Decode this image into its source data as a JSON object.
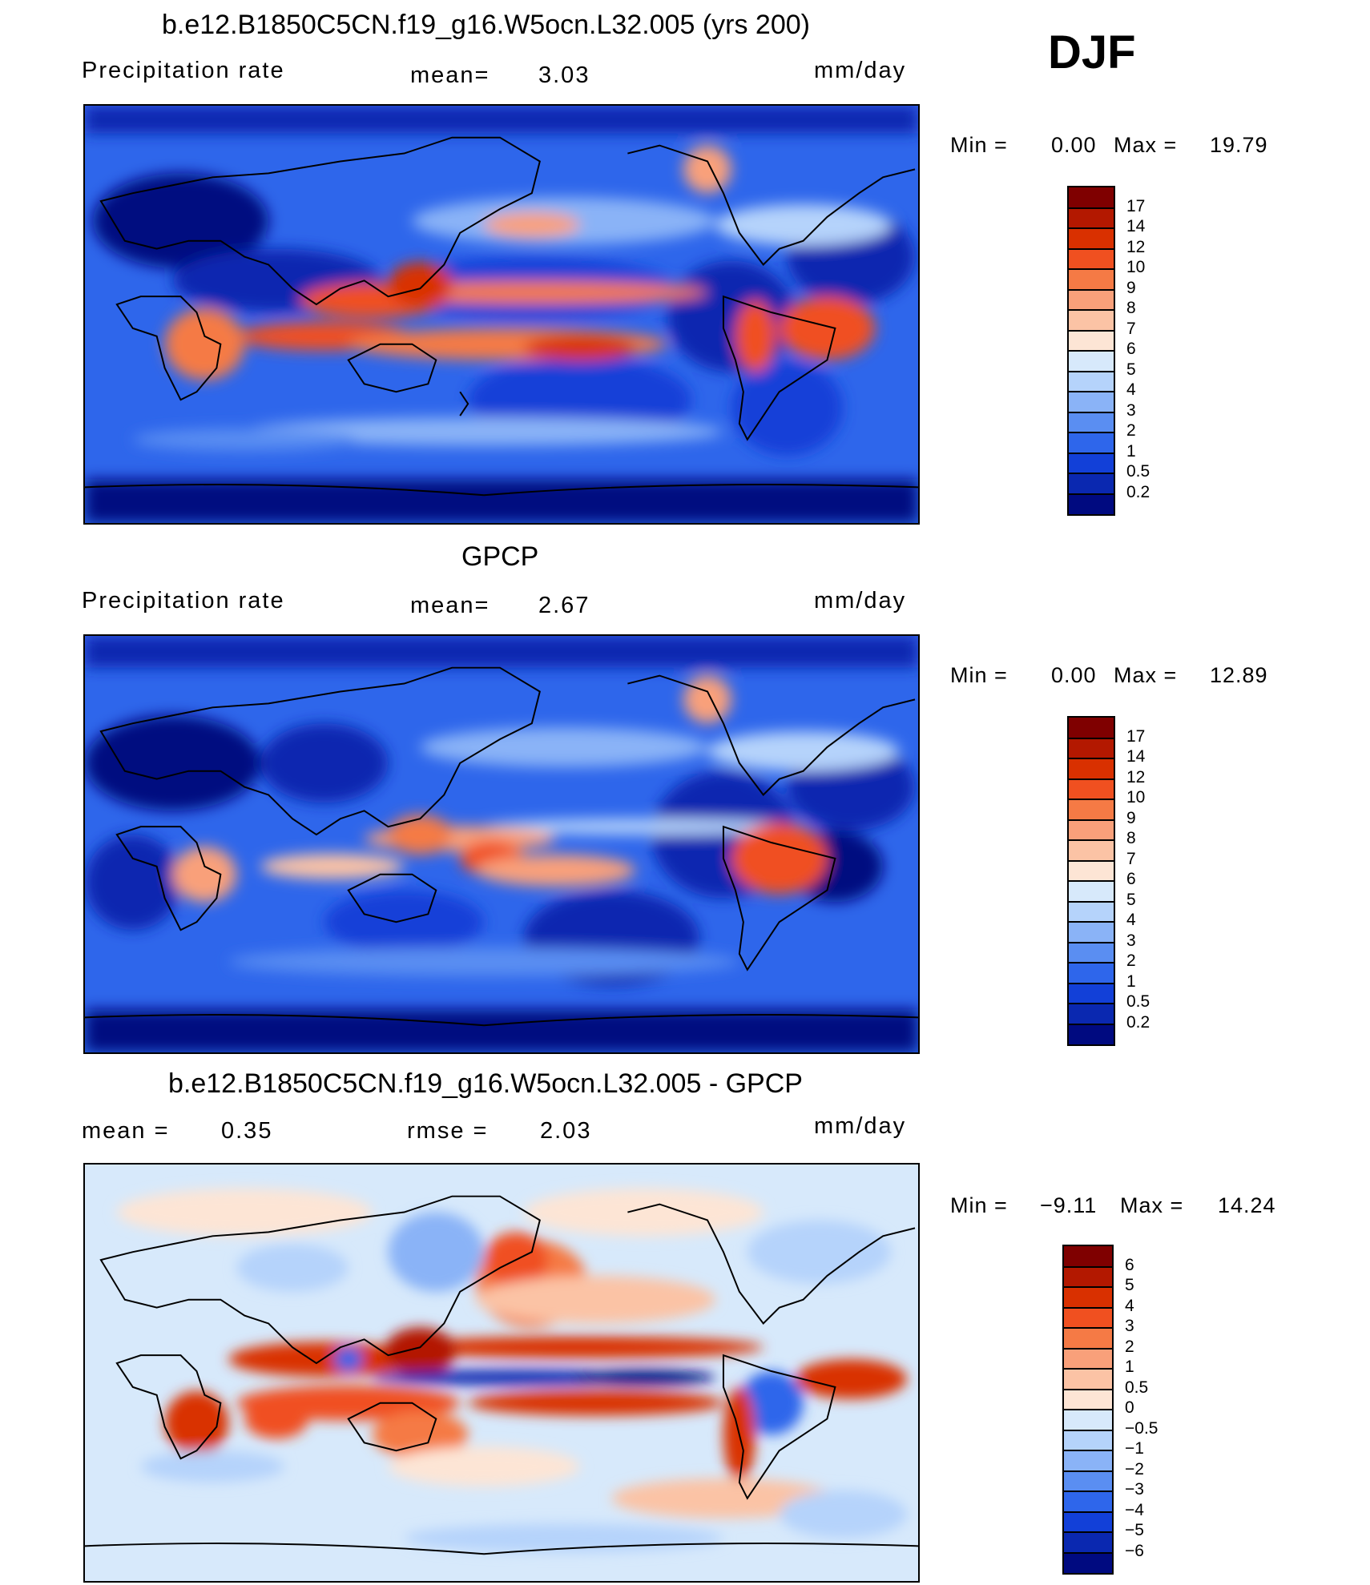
{
  "season": "DJF",
  "panels": [
    {
      "id": "model",
      "title": "b.e12.B1850C5CN.f19_g16.W5ocn.L32.005 (yrs 200)",
      "left_label": "Precipitation  rate",
      "mean_label": "mean=",
      "mean_value": "3.03",
      "units": "mm/day",
      "min_label": "Min  =",
      "min_value": "0.00",
      "max_label": "Max  =",
      "max_value": "19.79"
    },
    {
      "id": "obs",
      "title": "GPCP",
      "left_label": "Precipitation  rate",
      "mean_label": "mean=",
      "mean_value": "2.67",
      "units": "mm/day",
      "min_label": "Min  =",
      "min_value": "0.00",
      "max_label": "Max  =",
      "max_value": "12.89"
    },
    {
      "id": "diff",
      "title": "b.e12.B1850C5CN.f19_g16.W5ocn.L32.005 - GPCP",
      "mean_label": "mean  =",
      "mean_value": "0.35",
      "rmse_label": "rmse  =",
      "rmse_value": "2.03",
      "units": "mm/day",
      "min_label": "Min  =",
      "min_value": "−9.11",
      "max_label": "Max  =",
      "max_value": "14.24"
    }
  ],
  "colorbar_abs": {
    "labels": [
      "17",
      "14",
      "12",
      "10",
      "9",
      "8",
      "7",
      "6",
      "5",
      "4",
      "3",
      "2",
      "1",
      "0.5",
      "0.2"
    ],
    "colors": [
      "#7f0000",
      "#b31800",
      "#d93000",
      "#f05020",
      "#f57a45",
      "#f9a07a",
      "#fbc3a5",
      "#fde5d5",
      "#d7e9fb",
      "#b5d3fb",
      "#8ab3f7",
      "#5a8ef2",
      "#2e66eb",
      "#1240d8",
      "#0a28b0",
      "#000a80"
    ]
  },
  "colorbar_diff": {
    "labels": [
      "6",
      "5",
      "4",
      "3",
      "2",
      "1",
      "0.5",
      "0",
      "−0.5",
      "−1",
      "−2",
      "−3",
      "−4",
      "−5",
      "−6"
    ],
    "colors": [
      "#7f0000",
      "#b31800",
      "#d93000",
      "#f05020",
      "#f57a45",
      "#f9a07a",
      "#fbc3a5",
      "#fde5d5",
      "#d7e9fb",
      "#b5d3fb",
      "#8ab3f7",
      "#5a8ef2",
      "#2e66eb",
      "#1240d8",
      "#0a28b0",
      "#000a80"
    ]
  }
}
